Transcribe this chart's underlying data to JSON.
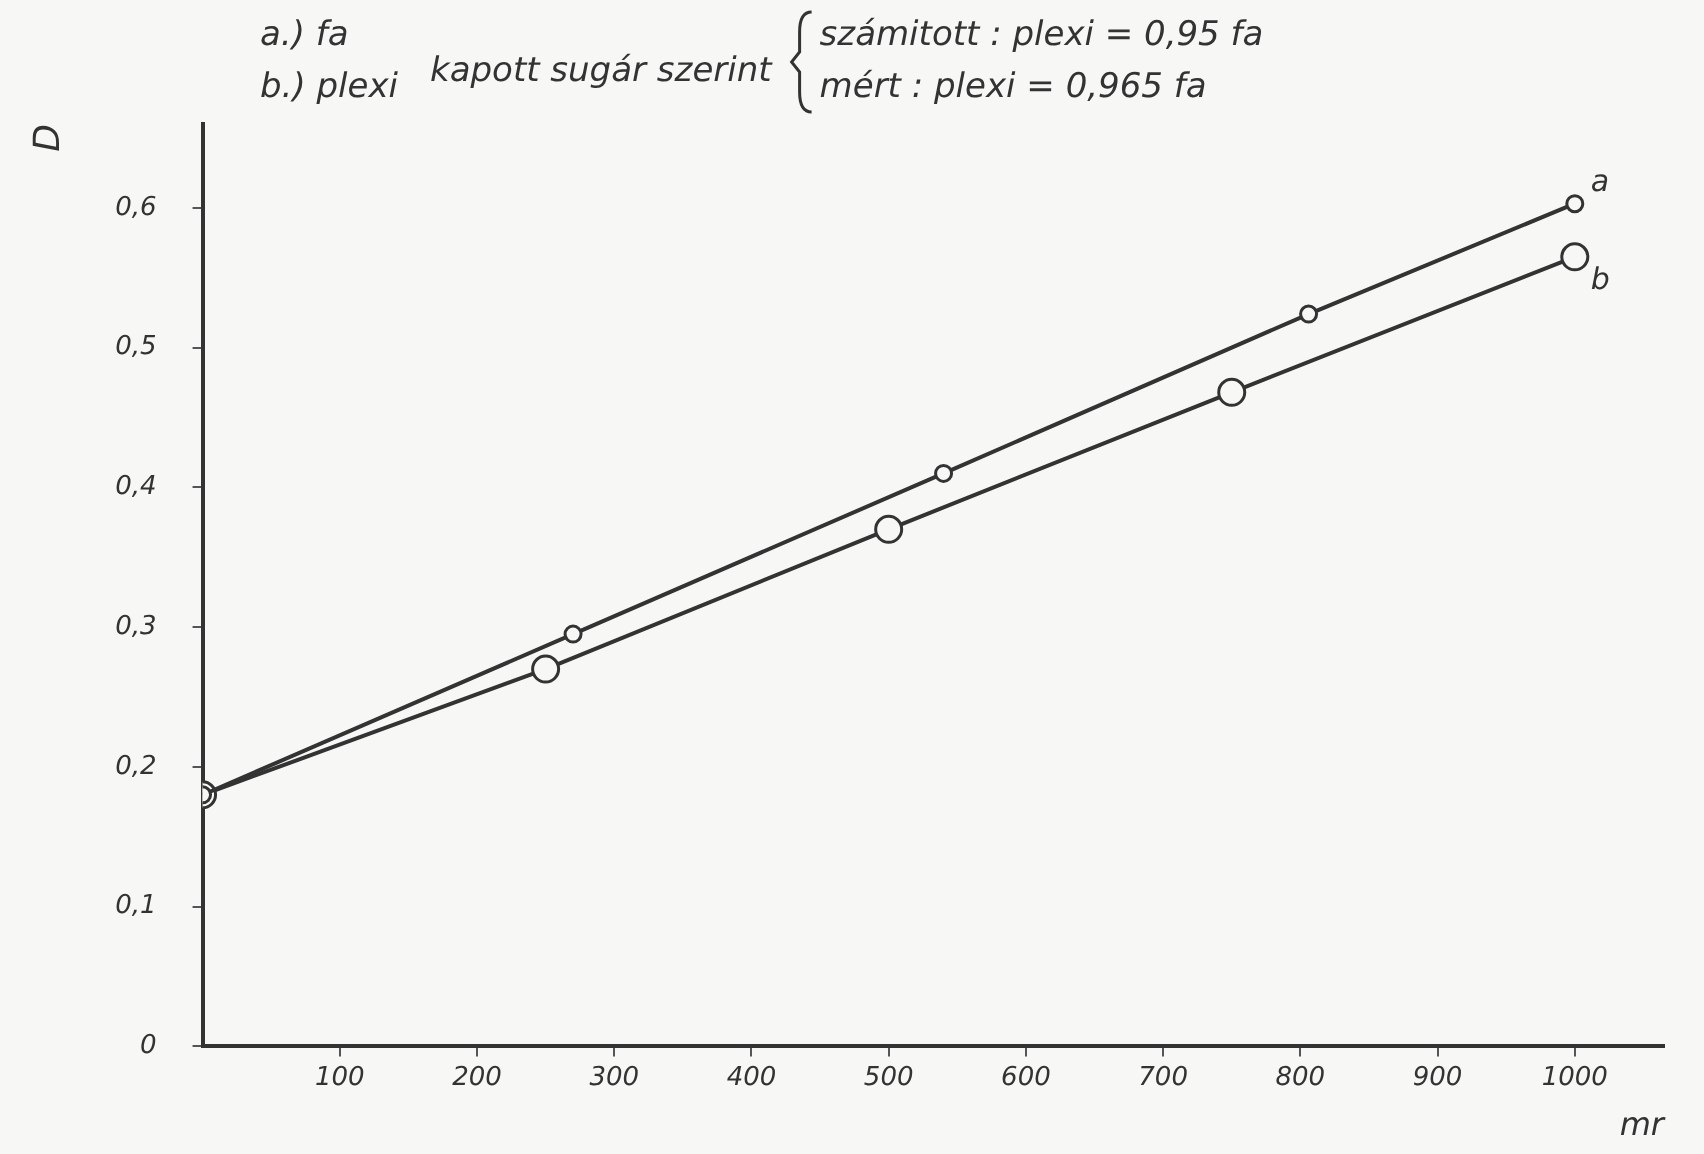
{
  "chart_data": {
    "type": "line",
    "xlabel": "mr",
    "ylabel": "D",
    "annotations": [
      "a.) fa",
      "b.) plexi",
      "kapott sugár szerint",
      "számitott : plexi = 0,95 fa",
      "mért : plexi = 0,965 fa"
    ],
    "series": [
      {
        "name": "a",
        "color": "#333333",
        "x": [
          0,
          270,
          540,
          806,
          1000
        ],
        "values": [
          0.18,
          0.295,
          0.41,
          0.524,
          0.603
        ]
      },
      {
        "name": "b",
        "color": "#333333",
        "x": [
          0,
          250,
          500,
          750,
          1000
        ],
        "values": [
          0.18,
          0.27,
          0.37,
          0.468,
          0.565
        ]
      }
    ],
    "xlim": [
      0,
      1065
    ],
    "xticks": [
      100,
      200,
      300,
      400,
      500,
      600,
      700,
      800,
      900,
      1000
    ],
    "ylim": [
      0,
      0.66
    ],
    "yticks": [
      {
        "value": 0,
        "label": "0"
      },
      {
        "value": 0.1,
        "label": "0,1"
      },
      {
        "value": 0.2,
        "label": "0,2"
      },
      {
        "value": 0.3,
        "label": "0,3"
      },
      {
        "value": 0.4,
        "label": "0,4"
      },
      {
        "value": 0.5,
        "label": "0,5"
      },
      {
        "value": 0.6,
        "label": "0,6"
      }
    ],
    "grid": false,
    "legend": false,
    "marker": "circle",
    "line_style": "solid"
  }
}
